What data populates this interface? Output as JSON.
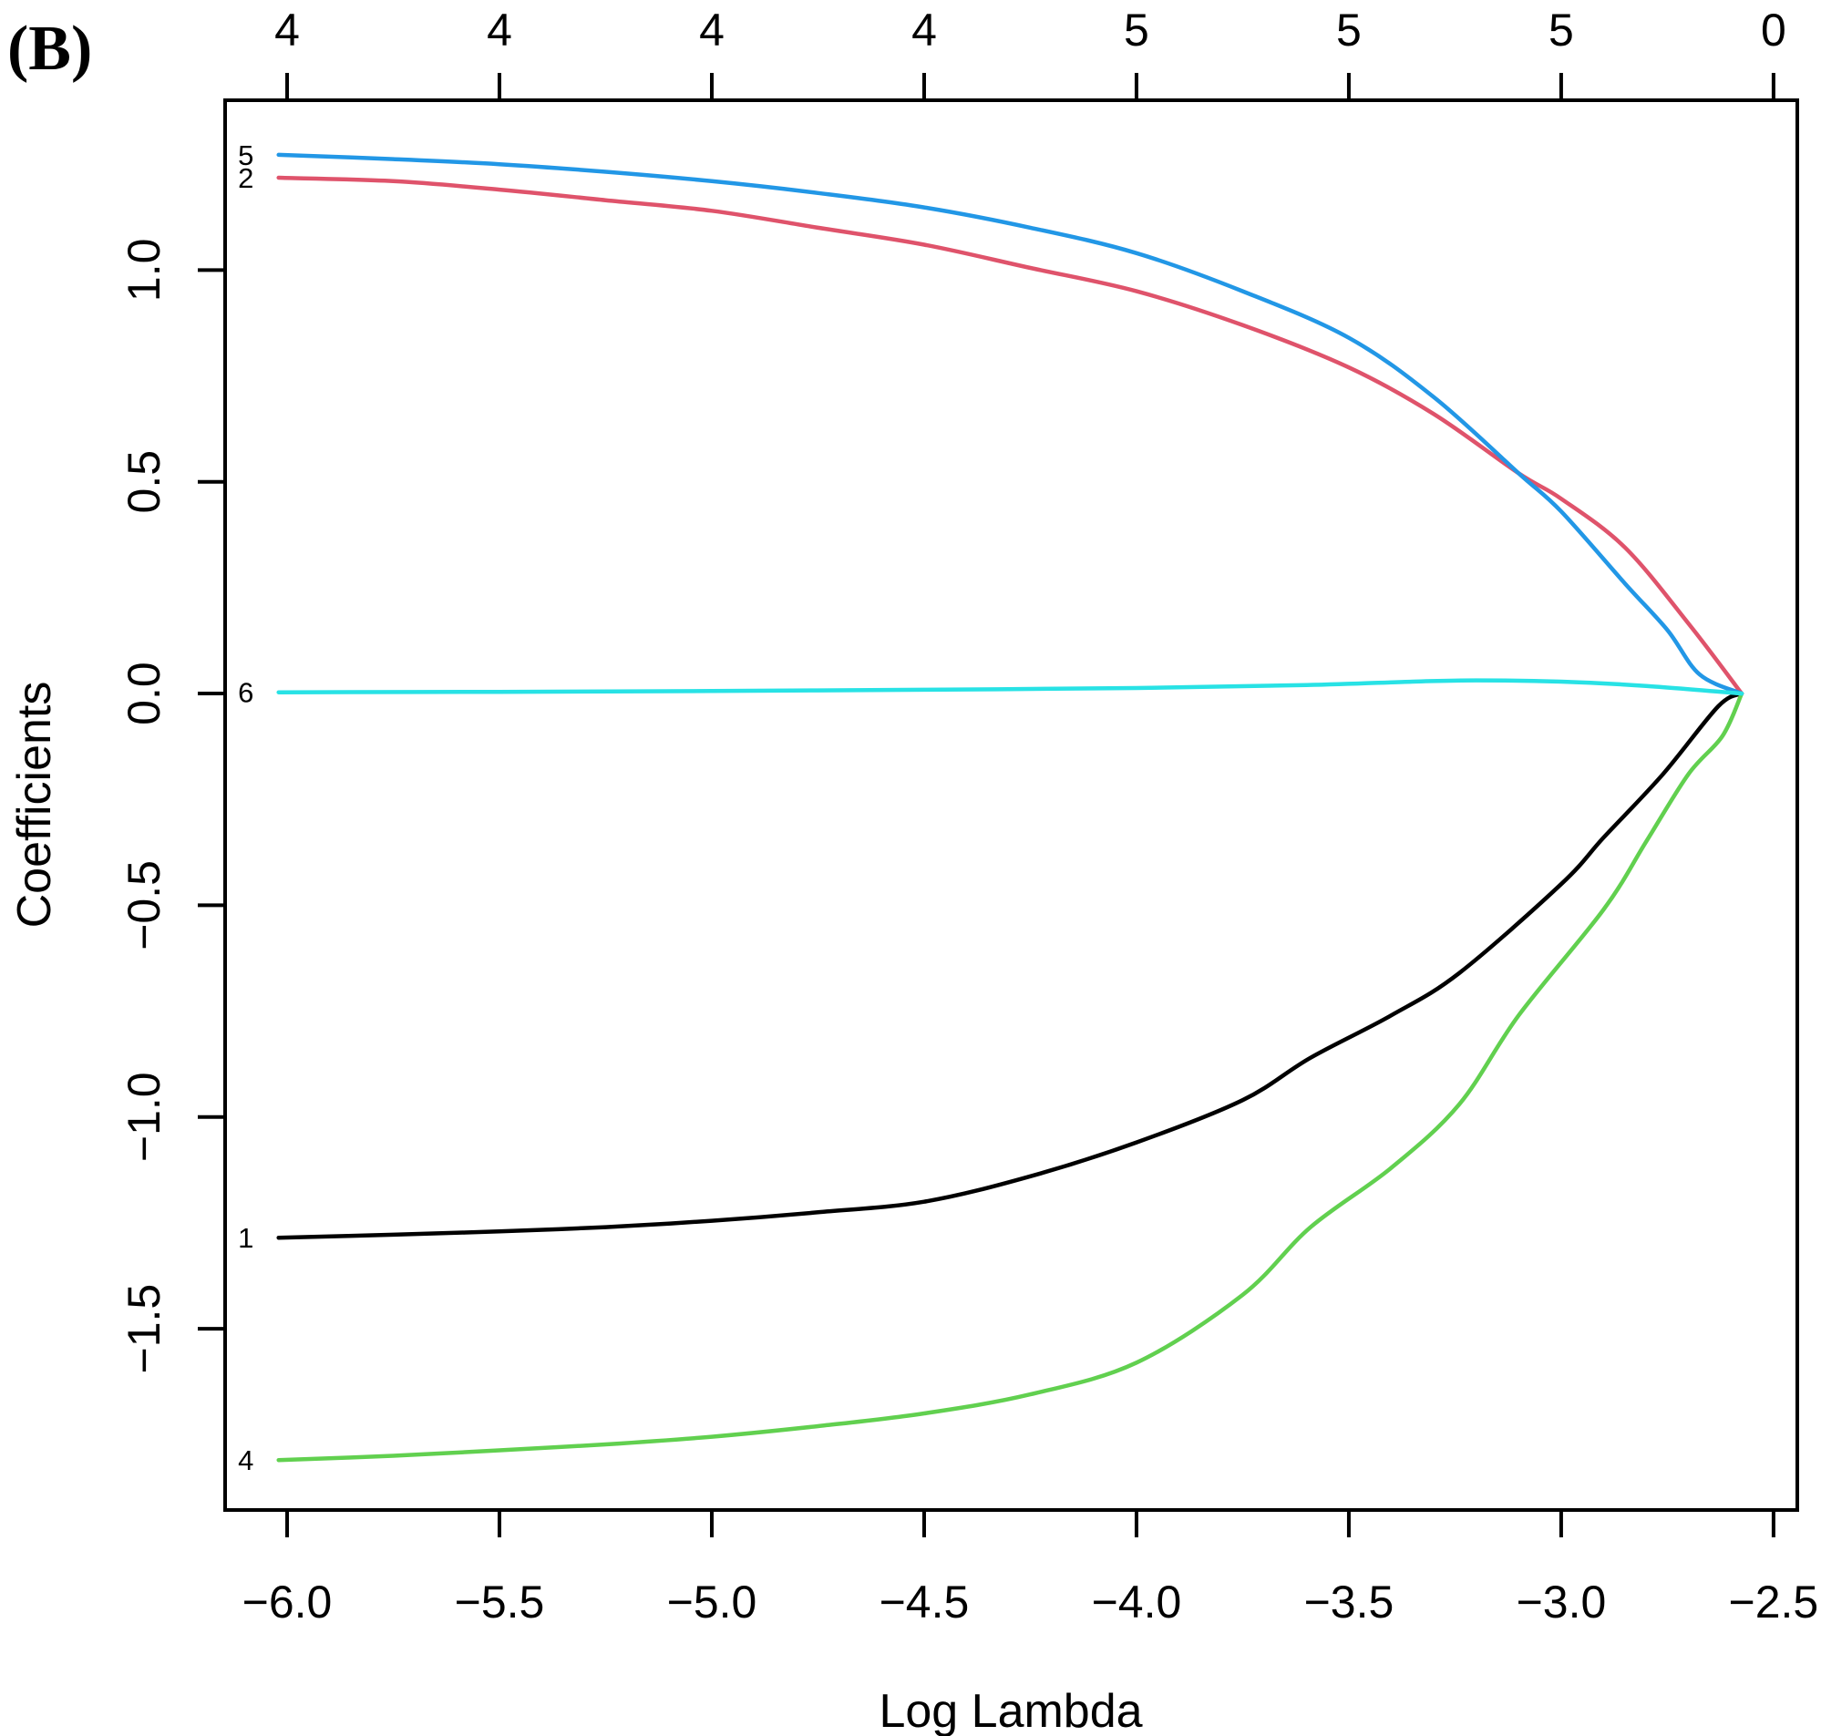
{
  "figure_label": "(B)",
  "chart_data": {
    "type": "line",
    "title": "",
    "xlabel": "Log Lambda",
    "ylabel": "Coefficients",
    "grid": false,
    "legend_position": "none",
    "xlim": [
      -6.146,
      -2.444
    ],
    "ylim": [
      -1.928,
      1.401
    ],
    "x_tick_values": [
      -6.0,
      -5.5,
      -5.0,
      -4.5,
      -4.0,
      -3.5,
      -3.0,
      -2.5
    ],
    "x_tick_labels": [
      "−6.0",
      "−5.5",
      "−5.0",
      "−4.5",
      "−4.0",
      "−3.5",
      "−3.0",
      "−2.5"
    ],
    "y_tick_values": [
      1.0,
      0.5,
      0.0,
      -0.5,
      -1.0,
      -1.5
    ],
    "y_tick_labels": [
      "1.0",
      "0.5",
      "0.0",
      "−0.5",
      "−1.0",
      "−1.5"
    ],
    "top_axis": {
      "tick_values": [
        -6.0,
        -5.5,
        -5.0,
        -4.5,
        -4.0,
        -3.5,
        -3.0,
        -2.5
      ],
      "labels": [
        "4",
        "4",
        "4",
        "4",
        "5",
        "5",
        "5",
        "0"
      ]
    },
    "series": [
      {
        "id": "1",
        "label": "1",
        "color": "#000000",
        "points": [
          [
            -6.02,
            -1.285
          ],
          [
            -5.75,
            -1.278
          ],
          [
            -5.5,
            -1.27
          ],
          [
            -5.25,
            -1.26
          ],
          [
            -5.0,
            -1.245
          ],
          [
            -4.75,
            -1.225
          ],
          [
            -4.5,
            -1.2
          ],
          [
            -4.25,
            -1.14
          ],
          [
            -4.0,
            -1.06
          ],
          [
            -3.75,
            -0.96
          ],
          [
            -3.59,
            -0.86
          ],
          [
            -3.4,
            -0.76
          ],
          [
            -3.24,
            -0.66
          ],
          [
            -3.0,
            -0.45
          ],
          [
            -2.9,
            -0.34
          ],
          [
            -2.76,
            -0.19
          ],
          [
            -2.63,
            -0.03
          ],
          [
            -2.575,
            0.0
          ]
        ]
      },
      {
        "id": "2",
        "label": "2",
        "color": "#DF536B",
        "points": [
          [
            -6.02,
            1.218
          ],
          [
            -5.75,
            1.21
          ],
          [
            -5.5,
            1.19
          ],
          [
            -5.25,
            1.165
          ],
          [
            -5.0,
            1.14
          ],
          [
            -4.75,
            1.1
          ],
          [
            -4.5,
            1.06
          ],
          [
            -4.25,
            1.005
          ],
          [
            -4.0,
            0.95
          ],
          [
            -3.75,
            0.87
          ],
          [
            -3.5,
            0.77
          ],
          [
            -3.3,
            0.66
          ],
          [
            -3.1,
            0.52
          ],
          [
            -3.0,
            0.46
          ],
          [
            -2.85,
            0.345
          ],
          [
            -2.7,
            0.165
          ],
          [
            -2.575,
            0.0
          ]
        ]
      },
      {
        "id": "4",
        "label": "4",
        "color": "#61D04F",
        "points": [
          [
            -6.02,
            -1.81
          ],
          [
            -5.75,
            -1.8
          ],
          [
            -5.5,
            -1.787
          ],
          [
            -5.25,
            -1.773
          ],
          [
            -5.0,
            -1.755
          ],
          [
            -4.75,
            -1.73
          ],
          [
            -4.5,
            -1.7
          ],
          [
            -4.25,
            -1.655
          ],
          [
            -4.0,
            -1.58
          ],
          [
            -3.75,
            -1.42
          ],
          [
            -3.59,
            -1.26
          ],
          [
            -3.4,
            -1.12
          ],
          [
            -3.24,
            -0.97
          ],
          [
            -3.1,
            -0.76
          ],
          [
            -2.9,
            -0.51
          ],
          [
            -2.8,
            -0.35
          ],
          [
            -2.7,
            -0.19
          ],
          [
            -2.62,
            -0.1
          ],
          [
            -2.575,
            0.0
          ]
        ]
      },
      {
        "id": "5",
        "label": "5",
        "color": "#2297E6",
        "points": [
          [
            -6.02,
            1.272
          ],
          [
            -5.75,
            1.262
          ],
          [
            -5.5,
            1.25
          ],
          [
            -5.25,
            1.232
          ],
          [
            -5.0,
            1.21
          ],
          [
            -4.75,
            1.182
          ],
          [
            -4.5,
            1.148
          ],
          [
            -4.25,
            1.1
          ],
          [
            -4.0,
            1.04
          ],
          [
            -3.75,
            0.95
          ],
          [
            -3.5,
            0.84
          ],
          [
            -3.3,
            0.7
          ],
          [
            -3.1,
            0.52
          ],
          [
            -3.0,
            0.43
          ],
          [
            -2.85,
            0.26
          ],
          [
            -2.75,
            0.15
          ],
          [
            -2.674,
            0.045
          ],
          [
            -2.575,
            0.0
          ]
        ]
      },
      {
        "id": "6",
        "label": "6",
        "color": "#28E2E5",
        "points": [
          [
            -6.02,
            0.003
          ],
          [
            -5.5,
            0.004
          ],
          [
            -5.0,
            0.006
          ],
          [
            -4.5,
            0.009
          ],
          [
            -4.0,
            0.013
          ],
          [
            -3.6,
            0.02
          ],
          [
            -3.35,
            0.028
          ],
          [
            -3.2,
            0.031
          ],
          [
            -3.0,
            0.028
          ],
          [
            -2.8,
            0.018
          ],
          [
            -2.575,
            0.0
          ]
        ]
      }
    ]
  }
}
